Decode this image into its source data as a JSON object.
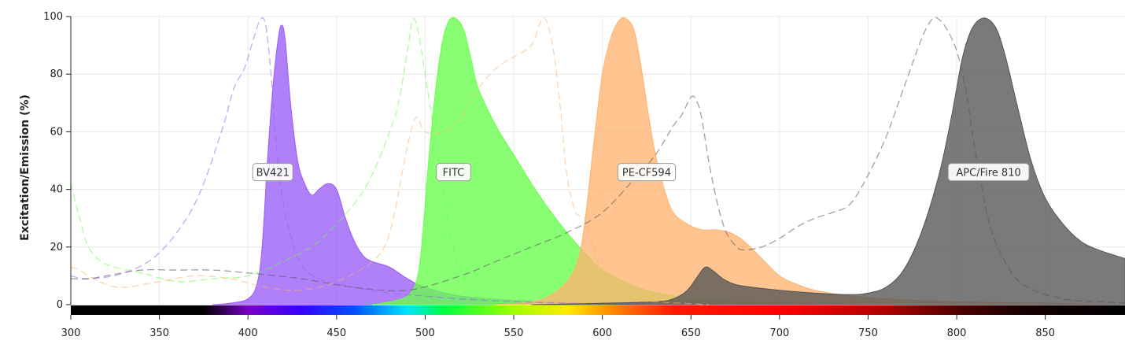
{
  "chart_data": {
    "type": "area",
    "title": "",
    "xlabel": "",
    "ylabel": "Excitation/Emission (%)",
    "xlim": [
      300,
      895
    ],
    "ylim": [
      0,
      100
    ],
    "x_ticks": [
      300,
      350,
      400,
      450,
      500,
      550,
      600,
      650,
      700,
      750,
      800,
      850
    ],
    "y_ticks": [
      0,
      20,
      40,
      60,
      80,
      100
    ],
    "grid": true,
    "series": [
      {
        "name": "BV421",
        "color": "#9a5cf7",
        "label_x": 414,
        "label_y": 46,
        "excitation": [
          [
            300,
            10
          ],
          [
            310,
            9
          ],
          [
            330,
            11
          ],
          [
            350,
            18
          ],
          [
            370,
            35
          ],
          [
            385,
            60
          ],
          [
            392,
            75
          ],
          [
            398,
            82
          ],
          [
            403,
            92
          ],
          [
            407,
            99
          ],
          [
            410,
            97
          ],
          [
            413,
            80
          ],
          [
            416,
            55
          ],
          [
            420,
            35
          ],
          [
            425,
            22
          ],
          [
            430,
            14
          ],
          [
            440,
            9
          ],
          [
            460,
            6
          ],
          [
            480,
            4
          ],
          [
            500,
            3
          ],
          [
            520,
            2
          ],
          [
            550,
            1
          ],
          [
            580,
            0.5
          ],
          [
            600,
            0
          ]
        ],
        "emission": [
          [
            380,
            0
          ],
          [
            390,
            0.5
          ],
          [
            400,
            2
          ],
          [
            405,
            7
          ],
          [
            408,
            20
          ],
          [
            411,
            50
          ],
          [
            414,
            75
          ],
          [
            417,
            92
          ],
          [
            419,
            97
          ],
          [
            421,
            92
          ],
          [
            424,
            70
          ],
          [
            428,
            50
          ],
          [
            432,
            42
          ],
          [
            436,
            38
          ],
          [
            440,
            40
          ],
          [
            445,
            42
          ],
          [
            450,
            40
          ],
          [
            455,
            30
          ],
          [
            460,
            22
          ],
          [
            465,
            17
          ],
          [
            470,
            15
          ],
          [
            480,
            13
          ],
          [
            490,
            9
          ],
          [
            500,
            6
          ],
          [
            520,
            3
          ],
          [
            550,
            1.5
          ],
          [
            600,
            0.5
          ],
          [
            640,
            0
          ]
        ]
      },
      {
        "name": "FITC",
        "color": "#66ff4a",
        "label_x": 516,
        "label_y": 46,
        "excitation": [
          [
            300,
            42
          ],
          [
            305,
            30
          ],
          [
            310,
            20
          ],
          [
            320,
            14
          ],
          [
            340,
            11
          ],
          [
            360,
            8
          ],
          [
            380,
            9
          ],
          [
            400,
            10
          ],
          [
            420,
            15
          ],
          [
            440,
            22
          ],
          [
            460,
            35
          ],
          [
            470,
            45
          ],
          [
            480,
            60
          ],
          [
            485,
            70
          ],
          [
            490,
            88
          ],
          [
            493,
            99
          ],
          [
            496,
            95
          ],
          [
            500,
            80
          ],
          [
            505,
            60
          ],
          [
            510,
            40
          ],
          [
            515,
            22
          ],
          [
            520,
            12
          ],
          [
            525,
            6
          ],
          [
            530,
            3
          ],
          [
            540,
            1
          ],
          [
            560,
            0
          ]
        ],
        "emission": [
          [
            470,
            0
          ],
          [
            480,
            1
          ],
          [
            490,
            3
          ],
          [
            495,
            8
          ],
          [
            498,
            20
          ],
          [
            502,
            50
          ],
          [
            506,
            75
          ],
          [
            510,
            92
          ],
          [
            514,
            99
          ],
          [
            518,
            99
          ],
          [
            522,
            95
          ],
          [
            526,
            85
          ],
          [
            530,
            75
          ],
          [
            540,
            62
          ],
          [
            550,
            52
          ],
          [
            560,
            42
          ],
          [
            570,
            33
          ],
          [
            580,
            25
          ],
          [
            590,
            18
          ],
          [
            600,
            12
          ],
          [
            620,
            6
          ],
          [
            640,
            3
          ],
          [
            660,
            1.5
          ],
          [
            700,
            0.5
          ],
          [
            730,
            0
          ]
        ]
      },
      {
        "name": "PE-CF594",
        "color": "#ffb370",
        "label_x": 625,
        "label_y": 46,
        "excitation": [
          [
            300,
            13
          ],
          [
            305,
            12
          ],
          [
            310,
            10
          ],
          [
            320,
            7
          ],
          [
            330,
            6
          ],
          [
            350,
            8
          ],
          [
            370,
            10
          ],
          [
            390,
            9
          ],
          [
            410,
            6
          ],
          [
            430,
            5
          ],
          [
            450,
            8
          ],
          [
            470,
            15
          ],
          [
            480,
            25
          ],
          [
            490,
            55
          ],
          [
            495,
            65
          ],
          [
            500,
            60
          ],
          [
            510,
            60
          ],
          [
            520,
            65
          ],
          [
            530,
            75
          ],
          [
            540,
            82
          ],
          [
            550,
            86
          ],
          [
            560,
            90
          ],
          [
            565,
            98
          ],
          [
            568,
            99
          ],
          [
            572,
            90
          ],
          [
            576,
            70
          ],
          [
            580,
            45
          ],
          [
            585,
            32
          ],
          [
            590,
            30
          ],
          [
            595,
            20
          ],
          [
            600,
            10
          ],
          [
            605,
            5
          ],
          [
            615,
            2
          ],
          [
            630,
            1
          ],
          [
            660,
            0
          ]
        ],
        "emission": [
          [
            540,
            0
          ],
          [
            560,
            1
          ],
          [
            570,
            3
          ],
          [
            580,
            8
          ],
          [
            586,
            15
          ],
          [
            590,
            28
          ],
          [
            595,
            55
          ],
          [
            600,
            80
          ],
          [
            605,
            93
          ],
          [
            610,
            99
          ],
          [
            614,
            99
          ],
          [
            618,
            95
          ],
          [
            622,
            82
          ],
          [
            626,
            66
          ],
          [
            630,
            52
          ],
          [
            635,
            40
          ],
          [
            640,
            32
          ],
          [
            648,
            28
          ],
          [
            656,
            26
          ],
          [
            664,
            26
          ],
          [
            672,
            25
          ],
          [
            680,
            22
          ],
          [
            690,
            16
          ],
          [
            700,
            10
          ],
          [
            710,
            7
          ],
          [
            720,
            5
          ],
          [
            740,
            3
          ],
          [
            760,
            2
          ],
          [
            800,
            1
          ],
          [
            850,
            0.5
          ],
          [
            895,
            0
          ]
        ]
      },
      {
        "name": "APC/Fire 810",
        "color": "#555555",
        "label_x": 818,
        "label_y": 46,
        "excitation": [
          [
            300,
            9
          ],
          [
            310,
            9
          ],
          [
            320,
            10
          ],
          [
            340,
            12
          ],
          [
            360,
            12
          ],
          [
            380,
            12
          ],
          [
            400,
            11
          ],
          [
            430,
            9
          ],
          [
            460,
            6
          ],
          [
            490,
            5
          ],
          [
            520,
            10
          ],
          [
            540,
            15
          ],
          [
            560,
            20
          ],
          [
            580,
            25
          ],
          [
            600,
            32
          ],
          [
            620,
            45
          ],
          [
            630,
            52
          ],
          [
            640,
            62
          ],
          [
            645,
            66
          ],
          [
            650,
            72
          ],
          [
            653,
            71
          ],
          [
            656,
            65
          ],
          [
            660,
            50
          ],
          [
            665,
            35
          ],
          [
            670,
            25
          ],
          [
            676,
            20
          ],
          [
            680,
            19
          ],
          [
            690,
            20
          ],
          [
            700,
            23
          ],
          [
            710,
            27
          ],
          [
            720,
            30
          ],
          [
            730,
            32
          ],
          [
            740,
            35
          ],
          [
            750,
            45
          ],
          [
            760,
            58
          ],
          [
            770,
            75
          ],
          [
            780,
            92
          ],
          [
            786,
            99
          ],
          [
            790,
            99
          ],
          [
            795,
            95
          ],
          [
            800,
            88
          ],
          [
            805,
            75
          ],
          [
            810,
            55
          ],
          [
            815,
            38
          ],
          [
            820,
            25
          ],
          [
            830,
            12
          ],
          [
            840,
            6
          ],
          [
            860,
            2
          ],
          [
            880,
            1
          ],
          [
            895,
            0.5
          ]
        ],
        "emission": [
          [
            560,
            0
          ],
          [
            600,
            0.5
          ],
          [
            630,
            1
          ],
          [
            640,
            2
          ],
          [
            648,
            5
          ],
          [
            654,
            10
          ],
          [
            658,
            13
          ],
          [
            662,
            12
          ],
          [
            668,
            9
          ],
          [
            675,
            7
          ],
          [
            685,
            6
          ],
          [
            700,
            5
          ],
          [
            720,
            4
          ],
          [
            740,
            3.5
          ],
          [
            750,
            4
          ],
          [
            760,
            6
          ],
          [
            770,
            12
          ],
          [
            780,
            25
          ],
          [
            790,
            45
          ],
          [
            797,
            65
          ],
          [
            803,
            85
          ],
          [
            808,
            95
          ],
          [
            813,
            99
          ],
          [
            818,
            99
          ],
          [
            823,
            95
          ],
          [
            828,
            85
          ],
          [
            835,
            67
          ],
          [
            842,
            50
          ],
          [
            850,
            37
          ],
          [
            860,
            28
          ],
          [
            870,
            22
          ],
          [
            880,
            19
          ],
          [
            895,
            16
          ]
        ]
      }
    ]
  }
}
